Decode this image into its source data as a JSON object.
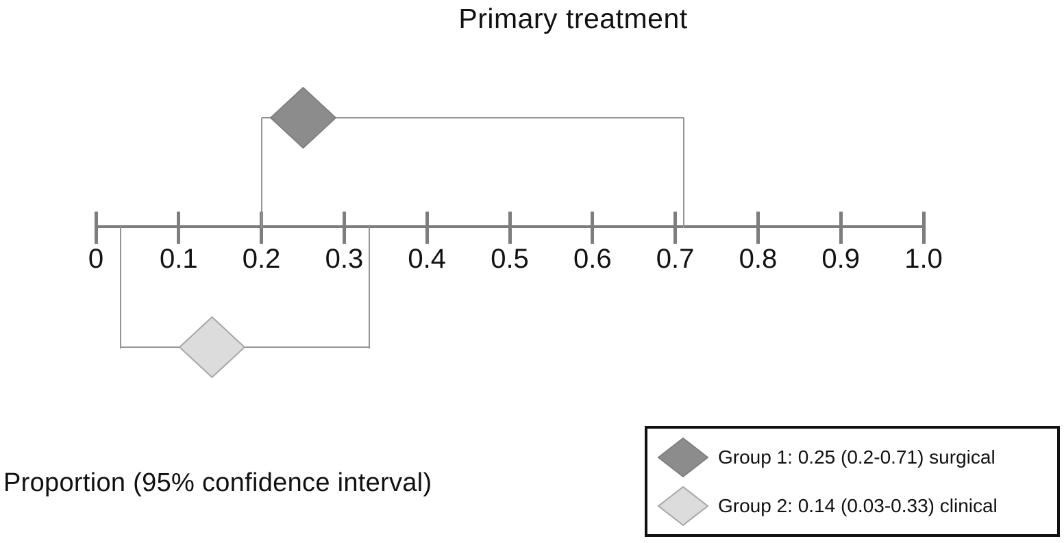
{
  "colors": {
    "background": "#ffffff",
    "axis": "#7d7d7d",
    "ci_line": "#949494",
    "text": "#111111",
    "legend_border": "#111111",
    "group1_fill": "#8c8c8c",
    "group1_edge": "#7f7f7f",
    "group2_fill": "#dcdcdc",
    "group2_edge": "#a6a6a6"
  },
  "chart_data": {
    "type": "scatter",
    "subtype": "forest-plot",
    "title": "Primary treatment",
    "xlabel": "Proportion (95% confidence interval)",
    "xlim": [
      0,
      1
    ],
    "xticks": [
      0,
      0.1,
      0.2,
      0.3,
      0.4,
      0.5,
      0.6,
      0.7,
      0.8,
      0.9,
      1.0
    ],
    "xtick_labels": [
      "0",
      "0.1",
      "0.2",
      "0.3",
      "0.4",
      "0.5",
      "0.6",
      "0.7",
      "0.8",
      "0.9",
      "1.0"
    ],
    "grid": false,
    "legend_position": "bottom-right",
    "series": [
      {
        "name": "Group 1",
        "treatment": "surgical",
        "estimate": 0.25,
        "ci_low": 0.2,
        "ci_high": 0.71,
        "side": "above",
        "fill": "#8c8c8c",
        "edge": "#7f7f7f",
        "legend_label": "Group 1: 0.25 (0.2-0.71) surgical"
      },
      {
        "name": "Group 2",
        "treatment": "clinical",
        "estimate": 0.14,
        "ci_low": 0.03,
        "ci_high": 0.33,
        "side": "below",
        "fill": "#dcdcdc",
        "edge": "#a6a6a6",
        "legend_label": "Group 2: 0.14 (0.03-0.33) clinical"
      }
    ]
  }
}
